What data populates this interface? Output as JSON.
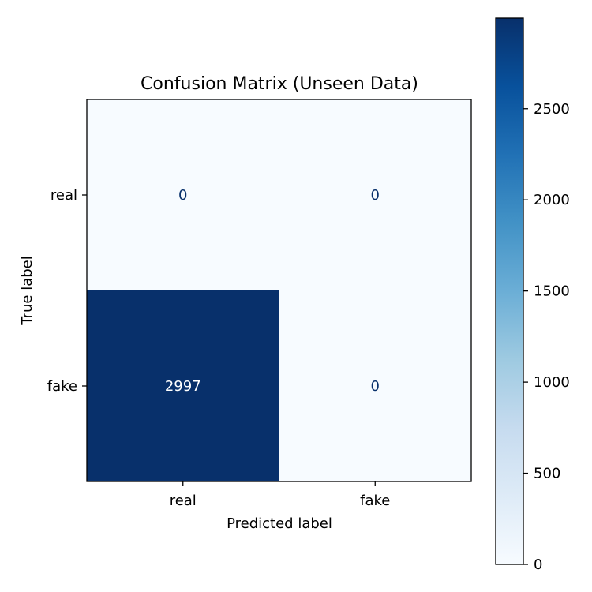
{
  "chart_data": {
    "type": "heatmap",
    "title": "Confusion Matrix (Unseen Data)",
    "xlabel": "Predicted label",
    "ylabel": "True label",
    "x_categories": [
      "real",
      "fake"
    ],
    "y_categories": [
      "real",
      "fake"
    ],
    "values": [
      [
        0,
        0
      ],
      [
        2997,
        0
      ]
    ],
    "colormap": "Blues",
    "colormap_low": "#f7fbff",
    "colormap_high": "#08306b",
    "text_color_dark_cells": "#08306b",
    "text_color_light_cells": "#ffffff",
    "colorbar": {
      "range": [
        0,
        2997
      ],
      "ticks": [
        0,
        500,
        1000,
        1500,
        2000,
        2500
      ],
      "tick_labels": [
        "0",
        "500",
        "1000",
        "1500",
        "2000",
        "2500"
      ]
    },
    "grid": false
  }
}
